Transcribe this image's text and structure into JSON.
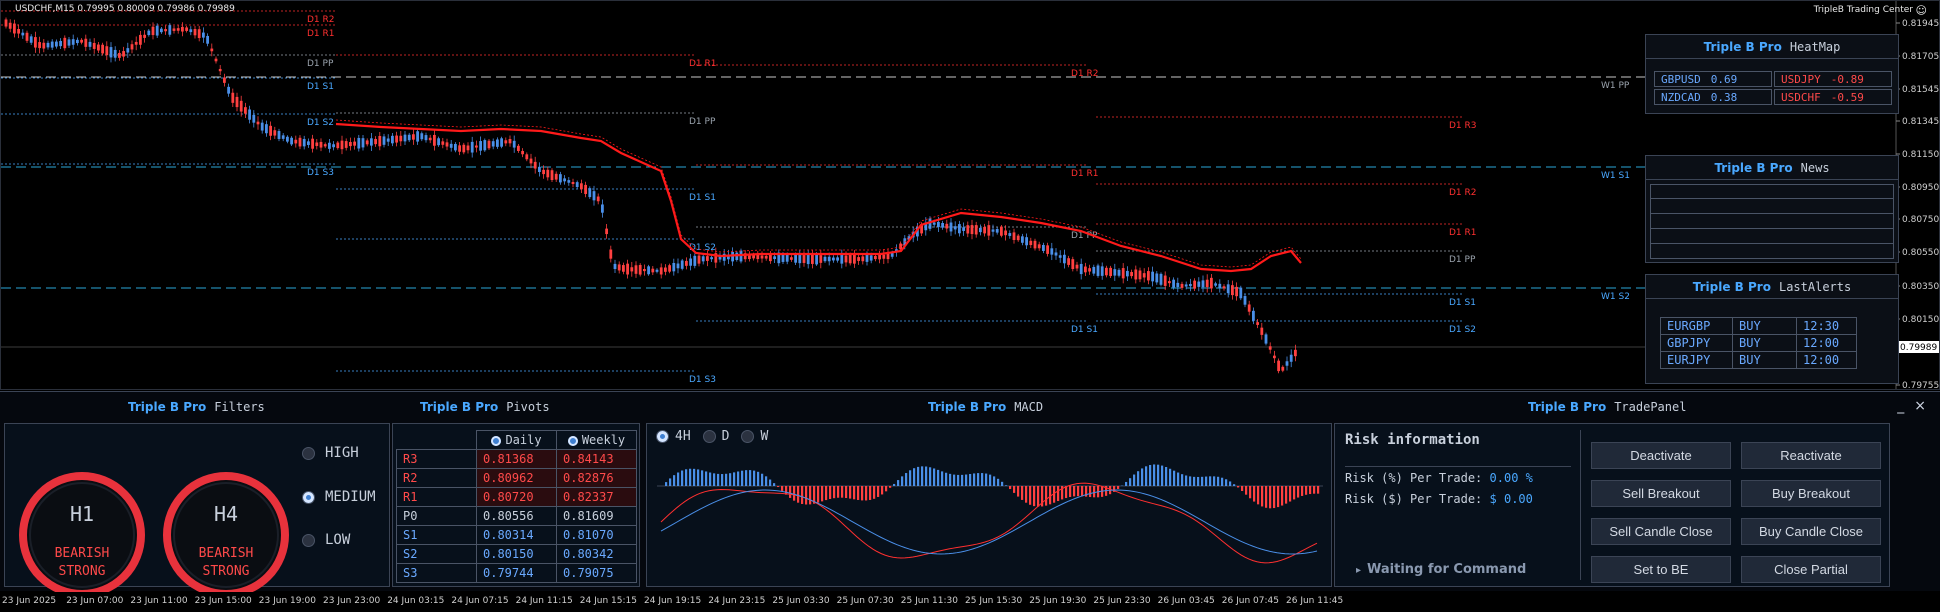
{
  "symbol_line": "USDCHF,M15  0.79995 0.80009 0.79986 0.79989",
  "broker": "TripleB Trading Center",
  "smiley": "☺",
  "colors": {
    "bull": "#4a8fe8",
    "bear": "#ff4040",
    "ma": "#ff1a1a",
    "res": "#ff3030",
    "sup": "#4aa8ff",
    "pp": "#9aa3ad"
  },
  "price_axis": {
    "labels": [
      "0.81945",
      "0.81705",
      "0.81545",
      "0.81345",
      "0.81150",
      "0.80950",
      "0.80750",
      "0.80550",
      "0.80350",
      "0.80150",
      "0.79989",
      "0.79755"
    ],
    "current": "0.79989"
  },
  "chart_levels": [
    {
      "label": "D1 R2",
      "kind": "res"
    },
    {
      "label": "D1 R1",
      "kind": "res"
    },
    {
      "label": "D1 PP",
      "kind": "pp"
    },
    {
      "label": "D1 S1",
      "kind": "sup"
    },
    {
      "label": "D1 S2",
      "kind": "sup"
    },
    {
      "label": "D1 S3",
      "kind": "sup"
    },
    {
      "label": "D1 R1",
      "kind": "res"
    },
    {
      "label": "D1 PP",
      "kind": "pp"
    },
    {
      "label": "D1 S1",
      "kind": "sup"
    },
    {
      "label": "D1 S2",
      "kind": "sup"
    },
    {
      "label": "D1 S3",
      "kind": "sup"
    },
    {
      "label": "D1 R2",
      "kind": "res"
    },
    {
      "label": "D1 R1",
      "kind": "res"
    },
    {
      "label": "D1 PP",
      "kind": "pp"
    },
    {
      "label": "D1 S1",
      "kind": "sup"
    },
    {
      "label": "D1 R3",
      "kind": "res"
    },
    {
      "label": "D1 R2",
      "kind": "res"
    },
    {
      "label": "D1 R1",
      "kind": "res"
    },
    {
      "label": "D1 PP",
      "kind": "pp"
    },
    {
      "label": "D1 S1",
      "kind": "sup"
    },
    {
      "label": "D1 S2",
      "kind": "sup"
    },
    {
      "label": "W1 PP",
      "kind": "pp"
    },
    {
      "label": "W1 S1",
      "kind": "sup"
    },
    {
      "label": "W1 S2",
      "kind": "sup"
    }
  ],
  "heatmap": {
    "brand": "Triple B Pro",
    "name": "HeatMap",
    "cells": [
      {
        "pair": "GBPUSD",
        "value": "0.69",
        "sign": "pos"
      },
      {
        "pair": "USDJPY",
        "value": "-0.89",
        "sign": "neg"
      },
      {
        "pair": "NZDCAD",
        "value": "0.38",
        "sign": "pos"
      },
      {
        "pair": "USDCHF",
        "value": "-0.59",
        "sign": "neg"
      }
    ]
  },
  "news": {
    "brand": "Triple B Pro",
    "name": "News"
  },
  "alerts": {
    "brand": "Triple B Pro",
    "name": "LastAlerts",
    "rows": [
      {
        "pair": "EURGBP",
        "side": "BUY",
        "time": "12:30"
      },
      {
        "pair": "GBPJPY",
        "side": "BUY",
        "time": "12:00"
      },
      {
        "pair": "EURJPY",
        "side": "BUY",
        "time": "12:00"
      }
    ]
  },
  "filters": {
    "brand": "Triple B Pro",
    "name": "Filters",
    "gauges": [
      {
        "tf": "H1",
        "line1": "BEARISH",
        "line2": "STRONG"
      },
      {
        "tf": "H4",
        "line1": "BEARISH",
        "line2": "STRONG"
      }
    ],
    "levels": [
      {
        "label": "HIGH",
        "selected": false
      },
      {
        "label": "MEDIUM",
        "selected": true
      },
      {
        "label": "LOW",
        "selected": false
      }
    ]
  },
  "pivots": {
    "brand": "Triple B Pro",
    "name": "Pivots",
    "headers": [
      "Daily",
      "Weekly"
    ],
    "rows": [
      {
        "label": "R3",
        "daily": "0.81368",
        "weekly": "0.84143",
        "kind": "r"
      },
      {
        "label": "R2",
        "daily": "0.80962",
        "weekly": "0.82876",
        "kind": "r"
      },
      {
        "label": "R1",
        "daily": "0.80720",
        "weekly": "0.82337",
        "kind": "r"
      },
      {
        "label": "P0",
        "daily": "0.80556",
        "weekly": "0.81609",
        "kind": "p"
      },
      {
        "label": "S1",
        "daily": "0.80314",
        "weekly": "0.81070",
        "kind": "s"
      },
      {
        "label": "S2",
        "daily": "0.80150",
        "weekly": "0.80342",
        "kind": "s"
      },
      {
        "label": "S3",
        "daily": "0.79744",
        "weekly": "0.79075",
        "kind": "s"
      }
    ]
  },
  "macd": {
    "brand": "Triple B Pro",
    "name": "MACD",
    "tabs": [
      {
        "label": "4H",
        "selected": true
      },
      {
        "label": "D",
        "selected": false
      },
      {
        "label": "W",
        "selected": false
      }
    ]
  },
  "trade": {
    "brand": "Triple B Pro",
    "name": "TradePanel",
    "win_min": "_",
    "win_close": "×",
    "risk_title": "Risk information",
    "risk_pct_label": "Risk (%) Per Trade:",
    "risk_pct_value": "0.00 %",
    "risk_usd_label": "Risk ($) Per Trade:",
    "risk_usd_value": "$ 0.00",
    "status_arrow": "▸",
    "status": "Waiting for Command",
    "buttons": [
      "Deactivate",
      "Reactivate",
      "Sell Breakout",
      "Buy Breakout",
      "Sell Candle Close",
      "Buy Candle Close",
      "Set to BE",
      "Close Partial"
    ]
  },
  "time_axis": [
    "23 Jun 2025",
    "23 Jun 07:00",
    "23 Jun 11:00",
    "23 Jun 15:00",
    "23 Jun 19:00",
    "23 Jun 23:00",
    "24 Jun 03:15",
    "24 Jun 07:15",
    "24 Jun 11:15",
    "24 Jun 15:15",
    "24 Jun 19:15",
    "24 Jun 23:15",
    "25 Jun 03:30",
    "25 Jun 07:30",
    "25 Jun 11:30",
    "25 Jun 15:30",
    "25 Jun 19:30",
    "25 Jun 23:30",
    "26 Jun 03:45",
    "26 Jun 07:45",
    "26 Jun 11:45"
  ]
}
